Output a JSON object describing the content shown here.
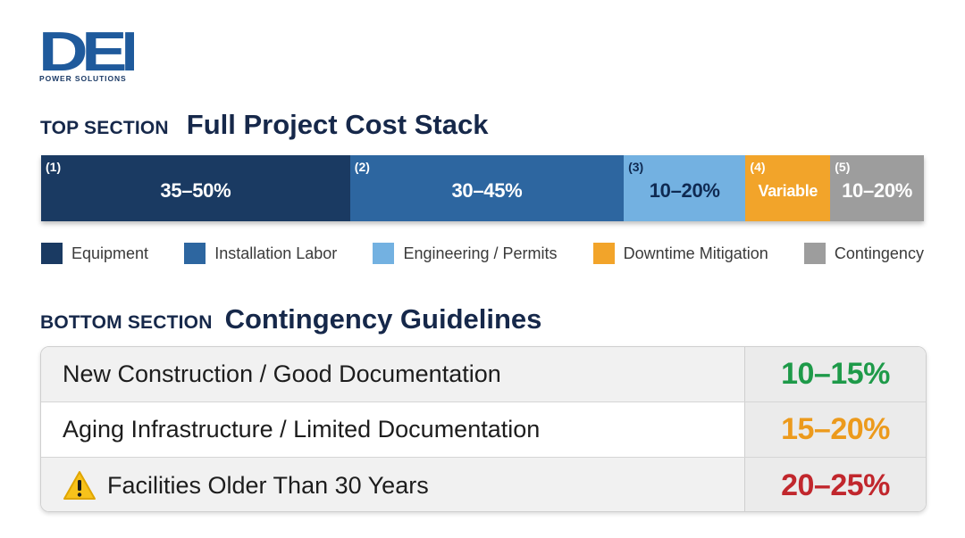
{
  "brand": {
    "logo_text": "DEI",
    "logo_subtitle": "POWER SOLUTIONS",
    "logo_color": "#1f5a9c"
  },
  "top_section": {
    "kicker": "TOP SECTION",
    "heading": "Full Project Cost Stack"
  },
  "bottom_section": {
    "kicker": "BOTTOM SECTION",
    "heading": "Contingency Guidelines"
  },
  "chart_data": {
    "type": "bar",
    "orientation": "horizontal-stacked",
    "title": "Full Project Cost Stack",
    "legend_position": "bottom",
    "segments": [
      {
        "number": "(1)",
        "label": "Equipment",
        "range_label": "35–50%",
        "low": 35,
        "high": 50,
        "relative_width": 35,
        "color": "#1a3a62"
      },
      {
        "number": "(2)",
        "label": "Installation Labor",
        "range_label": "30–45%",
        "low": 30,
        "high": 45,
        "relative_width": 31,
        "color": "#2d66a0"
      },
      {
        "number": "(3)",
        "label": "Engineering / Permits",
        "range_label": "10–20%",
        "low": 10,
        "high": 20,
        "relative_width": 13.8,
        "color": "#73b1e1"
      },
      {
        "number": "(4)",
        "label": "Downtime Mitigation",
        "range_label": "Variable",
        "low": null,
        "high": null,
        "relative_width": 9.6,
        "color": "#f2a42a"
      },
      {
        "number": "(5)",
        "label": "Contingency",
        "range_label": "10–20%",
        "low": 10,
        "high": 20,
        "relative_width": 10.6,
        "color": "#9d9d9d"
      }
    ]
  },
  "guidelines": [
    {
      "label": "New Construction / Good Documentation",
      "value": "10–15%",
      "color": "#1e9a49",
      "warning": false,
      "shaded": true
    },
    {
      "label": "Aging Infrastructure / Limited Documentation",
      "value": "15–20%",
      "color": "#ec9a1c",
      "warning": false,
      "shaded": false
    },
    {
      "label": "Facilities Older Than 30 Years",
      "value": "20–25%",
      "color": "#c1272d",
      "warning": true,
      "shaded": true
    }
  ]
}
